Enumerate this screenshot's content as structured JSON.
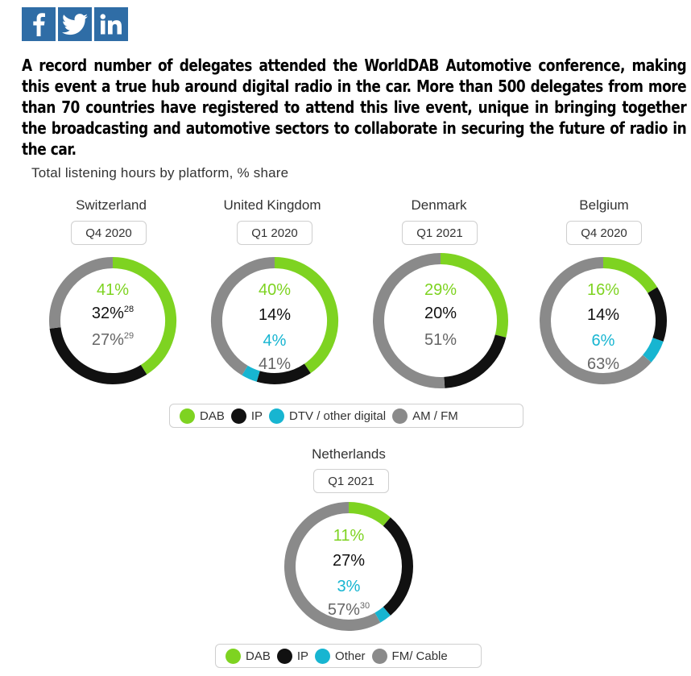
{
  "social": [
    {
      "name": "facebook-icon",
      "glyph": "f"
    },
    {
      "name": "twitter-icon",
      "glyph": "twitter"
    },
    {
      "name": "linkedin-icon",
      "glyph": "in"
    }
  ],
  "intro_text": "A record number of delegates attended the WorldDAB Automotive conference, making this event a true hub around digital radio in the car. More than 500 delegates from more than 70 countries have registered to attend this live event, unique in bringing together the broadcasting and automotive sectors to collaborate in securing the future of radio in the car.",
  "colors": {
    "dab": "#7ed321",
    "ip": "#111111",
    "dtv": "#17b5d1",
    "amfm": "#8a8a8a",
    "dab_text": "#7ed321",
    "ip_text": "#111111",
    "dtv_text": "#17b5d1",
    "amfm_text": "#666666"
  },
  "chart_data": {
    "type": "pie",
    "title": "Total listening hours by platform, % share",
    "charts": [
      {
        "country": "Switzerland",
        "period": "Q4 2020",
        "slices": [
          {
            "key": "dab",
            "value": 41,
            "label": "41%"
          },
          {
            "key": "ip",
            "value": 32,
            "label": "32%",
            "sup": "28"
          },
          {
            "key": "amfm",
            "value": 27,
            "label": "27%",
            "sup": "29"
          }
        ]
      },
      {
        "country": "United Kingdom",
        "period": "Q1 2020",
        "slices": [
          {
            "key": "dab",
            "value": 40,
            "label": "40%"
          },
          {
            "key": "ip",
            "value": 14,
            "label": "14%"
          },
          {
            "key": "dtv",
            "value": 4,
            "label": "4%"
          },
          {
            "key": "amfm",
            "value": 41,
            "label": "41%"
          }
        ]
      },
      {
        "country": "Denmark",
        "period": "Q1 2021",
        "slices": [
          {
            "key": "dab",
            "value": 29,
            "label": "29%"
          },
          {
            "key": "ip",
            "value": 20,
            "label": "20%"
          },
          {
            "key": "amfm",
            "value": 51,
            "label": "51%"
          }
        ]
      },
      {
        "country": "Belgium",
        "period": "Q4 2020",
        "slices": [
          {
            "key": "dab",
            "value": 16,
            "label": "16%"
          },
          {
            "key": "ip",
            "value": 14,
            "label": "14%"
          },
          {
            "key": "dtv",
            "value": 6,
            "label": "6%"
          },
          {
            "key": "amfm",
            "value": 63,
            "label": "63%"
          }
        ]
      },
      {
        "country": "Netherlands",
        "period": "Q1 2021",
        "slices": [
          {
            "key": "dab",
            "value": 11,
            "label": "11%"
          },
          {
            "key": "ip",
            "value": 27,
            "label": "27%"
          },
          {
            "key": "dtv",
            "value": 3,
            "label": "3%"
          },
          {
            "key": "amfm",
            "value": 57,
            "label": "57%",
            "sup": "30"
          }
        ]
      }
    ],
    "legend_top": [
      {
        "key": "dab",
        "label": "DAB"
      },
      {
        "key": "ip",
        "label": "IP"
      },
      {
        "key": "dtv",
        "label": "DTV / other digital"
      },
      {
        "key": "amfm",
        "label": "AM / FM"
      }
    ],
    "legend_bottom": [
      {
        "key": "dab",
        "label": "DAB"
      },
      {
        "key": "ip",
        "label": "IP"
      },
      {
        "key": "dtv",
        "label": "Other"
      },
      {
        "key": "amfm",
        "label": "FM/ Cable"
      }
    ]
  }
}
